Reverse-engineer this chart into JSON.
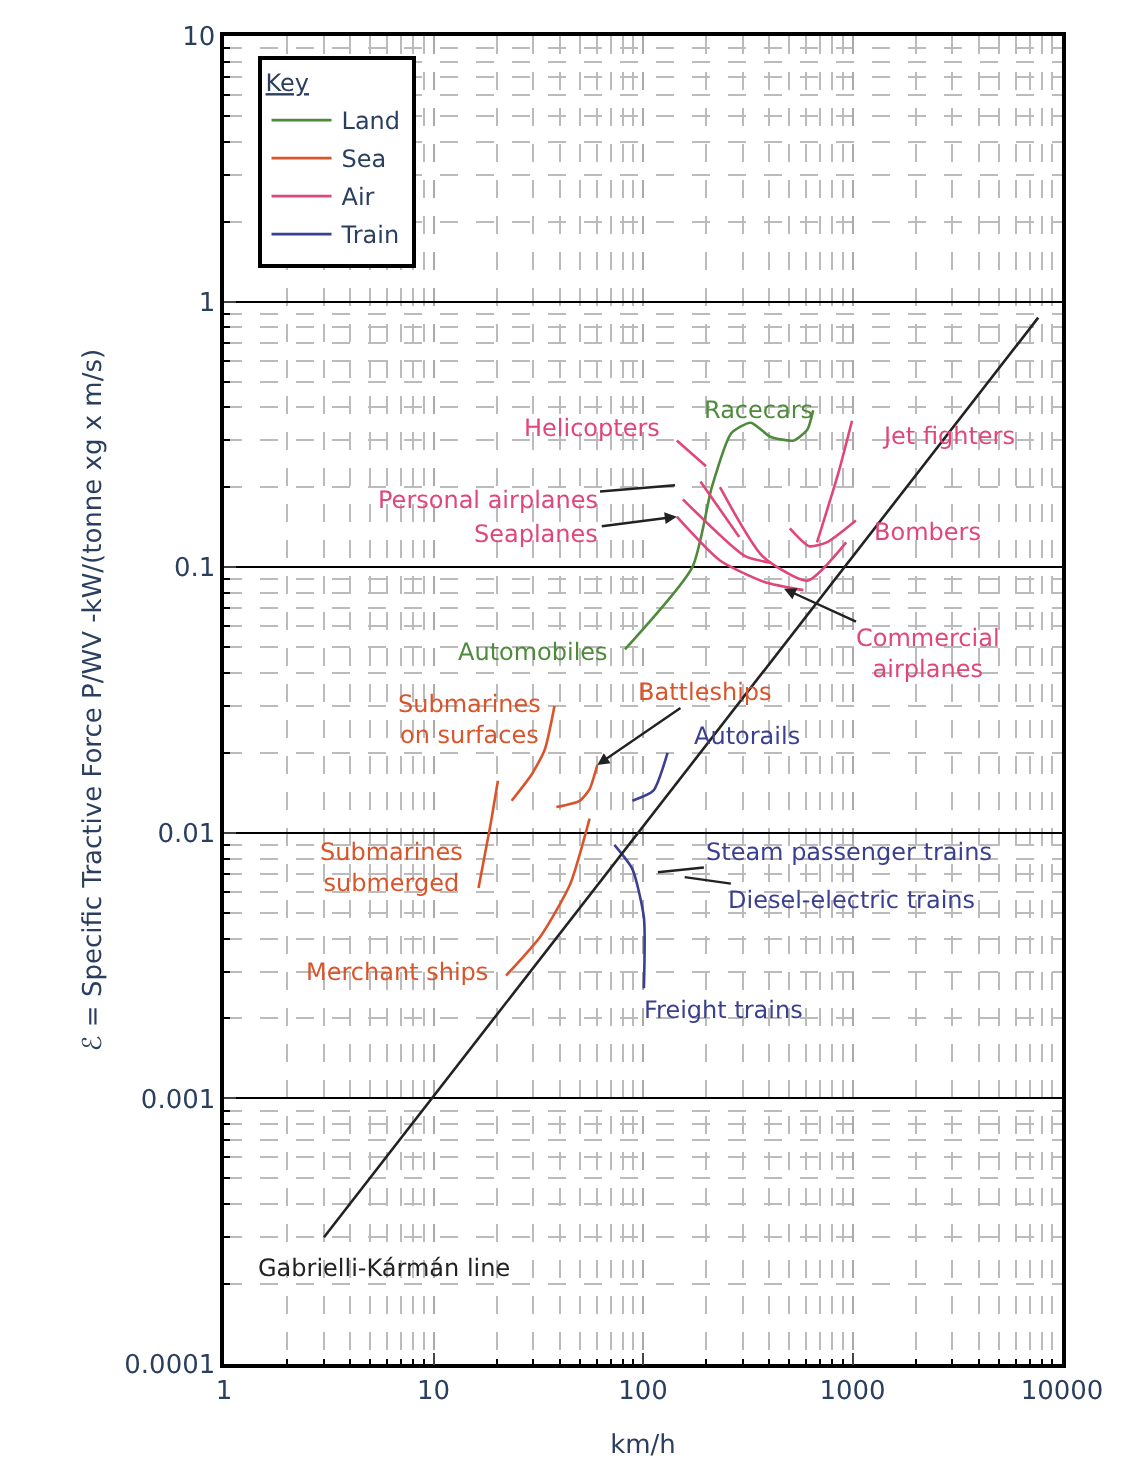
{
  "chart_data": {
    "type": "line",
    "xlabel": "km/h",
    "ylabel": "ℰ = Specific Tractive Force P/WV -kW/(tonne xg x m/s)",
    "legend_title": "Key",
    "log": "xy",
    "grid": true,
    "legend": "top left",
    "marker": "none",
    "line_style": "solid",
    "xlim": [
      1,
      10000
    ],
    "xticks": [
      1,
      10,
      100,
      1000,
      10000
    ],
    "ylim": [
      0.0001,
      10
    ],
    "yticks": [
      0.0001,
      0.001,
      0.01,
      0.1,
      1,
      10
    ],
    "series": [
      {
        "name": "Land",
        "color": "#4f8a3c",
        "x": [
          82,
          172,
          213,
          264,
          327,
          405,
          524,
          609,
          649
        ],
        "values": [
          0.049,
          0.1,
          0.2,
          0.32,
          0.35,
          0.31,
          0.3,
          0.33,
          0.39
        ]
      },
      {
        "name": "Sea",
        "color": "#d9542b",
        "x": [
          23.6,
          29.3,
          34,
          37.8,
          null,
          20.3,
          18.7,
          16.4,
          null,
          38.6,
          49.9,
          55.6,
          60.5,
          null,
          22.2,
          32.6,
          44.9,
          55.6
        ],
        "values": [
          0.0132,
          0.0165,
          0.0206,
          0.03,
          null,
          0.0157,
          0.0107,
          0.0062,
          null,
          0.0125,
          0.0132,
          0.0146,
          0.018,
          null,
          0.0029,
          0.0041,
          0.0064,
          0.0113
        ]
      },
      {
        "name": "Air",
        "color": "#e0457b",
        "x": [
          145,
          200,
          null,
          188,
          288,
          null,
          233,
          372,
          609,
          933,
          null,
          155,
          307,
          405,
          null,
          145,
          233,
          380,
          583,
          null,
          502,
          621,
          753,
          1038,
          null,
          677,
          857,
          995
        ],
        "values": [
          0.3,
          0.24,
          null,
          0.21,
          0.13,
          null,
          0.2,
          0.11,
          0.089,
          0.124,
          null,
          0.18,
          0.11,
          0.104,
          null,
          0.155,
          0.106,
          0.088,
          0.082,
          null,
          0.14,
          0.12,
          0.124,
          0.15,
          null,
          0.124,
          0.227,
          0.356
        ]
      },
      {
        "name": "Train",
        "color": "#3a3f8f",
        "x": [
          89,
          112,
          131,
          null,
          73,
          89,
          101,
          101
        ],
        "values": [
          0.0132,
          0.0144,
          0.02,
          null,
          0.009,
          0.0073,
          0.0048,
          0.0026
        ]
      },
      {
        "color": "#222222",
        "x": [
          3,
          7700
        ],
        "values": [
          0.0003,
          0.87
        ]
      }
    ],
    "annotations": [
      {
        "text": "Racecars",
        "x": 609,
        "y": 0.33
      },
      {
        "text": "Helicopters",
        "x": 145,
        "y": 0.3
      },
      {
        "text": "Jet fighters",
        "x": 995,
        "y": 0.356
      },
      "Personal airplanes",
      {
        "text": "Seaplanes",
        "x": 145,
        "y": 0.155
      },
      {
        "text": "Bombers",
        "x": 1038,
        "y": 0.15
      },
      {
        "text": "Commercial\nairplanes",
        "x": 471,
        "y": 0.083
      },
      {
        "text": "Automobiles",
        "x": 82,
        "y": 0.049
      },
      {
        "text": "Battleships",
        "x": 60.5,
        "y": 0.018
      },
      {
        "text": "Submarines\non surfaces",
        "x": 37.8,
        "y": 0.03
      },
      {
        "text": "Autorails",
        "x": 131,
        "y": 0.02
      },
      {
        "text": "Submarines\nsubmerged",
        "x": 16.4,
        "y": 0.0062
      },
      "Steam passenger trains",
      "Diesel-electric trains",
      {
        "text": "Merchant ships",
        "x": 22.2,
        "y": 0.0029
      },
      {
        "text": "Freight trains",
        "x": 101,
        "y": 0.0026
      },
      {
        "text": "Gabrielli-Kármán line",
        "x": 3,
        "y": 0.0003
      }
    ]
  }
}
